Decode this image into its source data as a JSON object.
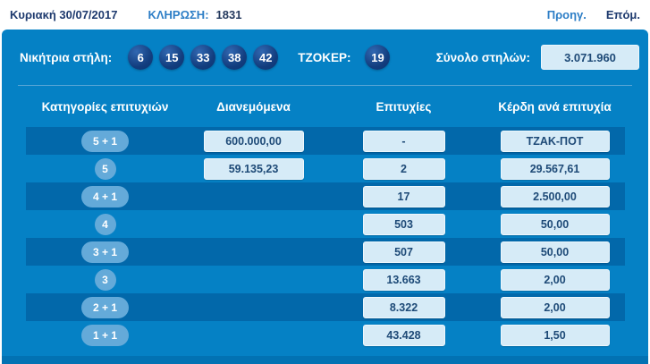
{
  "topbar": {
    "date": "Κυριακή 30/07/2017",
    "draw_label": "ΚΛΗΡΩΣΗ:",
    "draw_number": "1831",
    "prev_label": "Προηγ.",
    "next_label": "Επόμ."
  },
  "panel": {
    "winning_label": "Νικήτρια στήλη:",
    "numbers": [
      "6",
      "15",
      "33",
      "38",
      "42"
    ],
    "joker_label": "ΤΖΟΚΕΡ:",
    "joker_number": "19",
    "total_label": "Σύνολο στηλών:",
    "total_value": "3.071.960"
  },
  "table": {
    "headers": [
      "Κατηγορίες επιτυχιών",
      "Διανεμόμενα",
      "Επιτυχίες",
      "Κέρδη ανά επιτυχία"
    ],
    "rows": [
      {
        "category": "5 + 1",
        "distributed": "600.000,00",
        "winners": "-",
        "prize": "ΤΖΑΚ-ΠΟΤ"
      },
      {
        "category": "5",
        "distributed": "59.135,23",
        "winners": "2",
        "prize": "29.567,61"
      },
      {
        "category": "4 + 1",
        "distributed": "",
        "winners": "17",
        "prize": "2.500,00"
      },
      {
        "category": "4",
        "distributed": "",
        "winners": "503",
        "prize": "50,00"
      },
      {
        "category": "3 + 1",
        "distributed": "",
        "winners": "507",
        "prize": "50,00"
      },
      {
        "category": "3",
        "distributed": "",
        "winners": "13.663",
        "prize": "2,00"
      },
      {
        "category": "2 + 1",
        "distributed": "",
        "winners": "8.322",
        "prize": "2,00"
      },
      {
        "category": "1 + 1",
        "distributed": "",
        "winners": "43.428",
        "prize": "1,50"
      }
    ]
  },
  "colors": {
    "panel_blue": "#0581c5",
    "dark_row_blue": "#0268aa",
    "ball_navy": "#123d7e",
    "pill_light_blue": "#64aad9",
    "value_box_bg": "#d6ebf7",
    "value_text_navy": "#1e4a77",
    "link_blue": "#2d7ec6",
    "header_text_navy": "#1e3a6e",
    "bottom_strip_blue": "#0272b3"
  }
}
